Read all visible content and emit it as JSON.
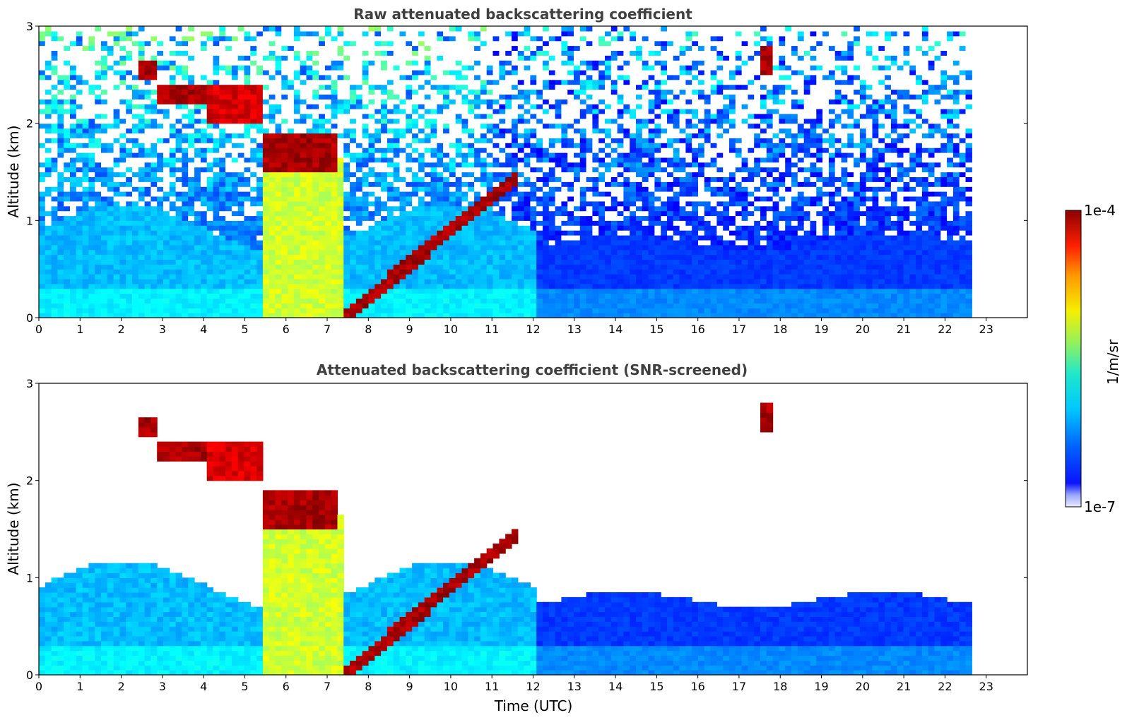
{
  "chart_data": [
    {
      "type": "heatmap",
      "title": "Raw attenuated backscattering coefficient",
      "ylabel": "Altitude (km)",
      "xlabel": "",
      "xlim": [
        0,
        24
      ],
      "ylim": [
        0,
        3
      ],
      "x_ticks": [
        "0",
        "1",
        "2",
        "3",
        "4",
        "5",
        "6",
        "7",
        "8",
        "9",
        "10",
        "11",
        "12",
        "13",
        "14",
        "15",
        "16",
        "17",
        "18",
        "19",
        "20",
        "21",
        "22",
        "23"
      ],
      "y_ticks": [
        "0",
        "1",
        "2",
        "3"
      ],
      "data_end_hour": 22.65,
      "features": [
        {
          "kind": "boundary_layer",
          "from": 0,
          "to": 22.65,
          "alt_km": [
            0,
            0.6
          ],
          "level": 0.3
        },
        {
          "kind": "cloud_layer",
          "from": 2.3,
          "to": 2.8,
          "alt_km": [
            2.45,
            2.65
          ],
          "level": 1.0
        },
        {
          "kind": "cloud_layer",
          "from": 2.8,
          "to": 4.0,
          "alt_km": [
            2.2,
            2.4
          ],
          "level": 1.0
        },
        {
          "kind": "cloud_layer",
          "from": 4.0,
          "to": 5.4,
          "alt_km": [
            2.0,
            2.4
          ],
          "level": 0.95
        },
        {
          "kind": "cloud_layer",
          "from": 5.4,
          "to": 7.2,
          "alt_km": [
            1.5,
            1.9
          ],
          "level": 1.0
        },
        {
          "kind": "precipitation",
          "from": 5.4,
          "to": 7.3,
          "alt_km": [
            0,
            1.6
          ],
          "level": 0.62
        },
        {
          "kind": "cloud_layer",
          "from": 7.3,
          "to": 11.6,
          "alt_km": [
            0.05,
            1.4
          ],
          "level": 1.0
        },
        {
          "kind": "isolated_cloud",
          "from": 17.5,
          "to": 17.8,
          "alt_km": [
            2.5,
            2.75
          ],
          "level": 1.0
        }
      ]
    },
    {
      "type": "heatmap",
      "title": "Attenuated backscattering coefficient (SNR-screened)",
      "ylabel": "Altitude (km)",
      "xlabel": "Time (UTC)",
      "xlim": [
        0,
        24
      ],
      "ylim": [
        0,
        3
      ],
      "x_ticks": [
        "0",
        "1",
        "2",
        "3",
        "4",
        "5",
        "6",
        "7",
        "8",
        "9",
        "10",
        "11",
        "12",
        "13",
        "14",
        "15",
        "16",
        "17",
        "18",
        "19",
        "20",
        "21",
        "22",
        "23"
      ],
      "y_ticks": [
        "0",
        "1",
        "2",
        "3"
      ],
      "data_end_hour": 22.65,
      "screened": true
    }
  ],
  "colorbar": {
    "label": "1/m/sr",
    "max_label": "1e-4",
    "min_label": "1e-7",
    "scale": "log",
    "colormap": "jet"
  }
}
